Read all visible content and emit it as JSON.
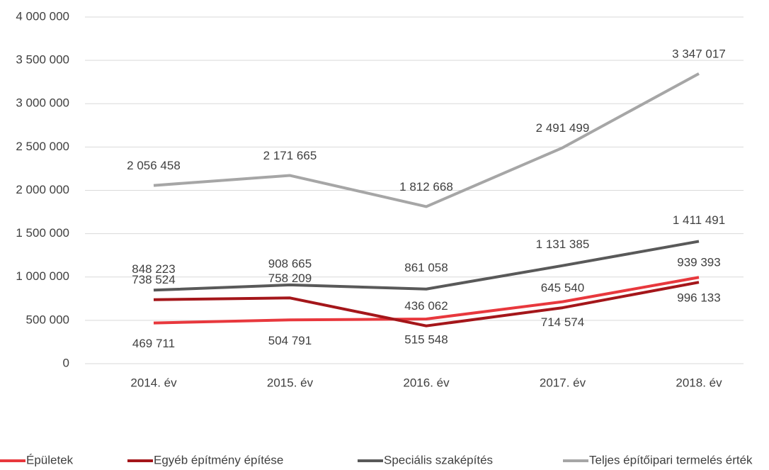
{
  "chart_data": {
    "type": "line",
    "categories": [
      "2014. év",
      "2015. év",
      "2016. év",
      "2017. év",
      "2018. év"
    ],
    "series": [
      {
        "name": "Épületek",
        "color": "#e8383d",
        "values": [
          469711,
          504791,
          515548,
          714574,
          996133
        ],
        "value_labels": [
          "469 711",
          "504 791",
          "515 548",
          "714 574",
          "996 133"
        ]
      },
      {
        "name": "Egyéb építmény építése",
        "color": "#a4161a",
        "values": [
          738524,
          758209,
          436062,
          645540,
          939393
        ],
        "value_labels": [
          "738 524",
          "758 209",
          "436 062",
          "645 540",
          "939 393"
        ]
      },
      {
        "name": "Speciális szaképítés",
        "color": "#595959",
        "values": [
          848223,
          908665,
          861058,
          1131385,
          1411491
        ],
        "value_labels": [
          "848 223",
          "908 665",
          "861 058",
          "1 131 385",
          "1 411 491"
        ]
      },
      {
        "name": "Teljes építőipari termelés érték",
        "color": "#a6a6a6",
        "values": [
          2056458,
          2171665,
          1812668,
          2491499,
          3347017
        ],
        "value_labels": [
          "2 056 458",
          "2 171 665",
          "1 812 668",
          "2 491 499",
          "3 347 017"
        ]
      }
    ],
    "ylim": [
      0,
      4000000
    ],
    "yticks": [
      {
        "value": 0,
        "label": "0"
      },
      {
        "value": 500000,
        "label": "500 000"
      },
      {
        "value": 1000000,
        "label": "1 000 000"
      },
      {
        "value": 1500000,
        "label": "1 500 000"
      },
      {
        "value": 2000000,
        "label": "2 000 000"
      },
      {
        "value": 2500000,
        "label": "2 500 000"
      },
      {
        "value": 3000000,
        "label": "3 000 000"
      },
      {
        "value": 3500000,
        "label": "3 500 000"
      },
      {
        "value": 4000000,
        "label": "4 000 000"
      }
    ],
    "grid": true,
    "legend": "bottom"
  }
}
